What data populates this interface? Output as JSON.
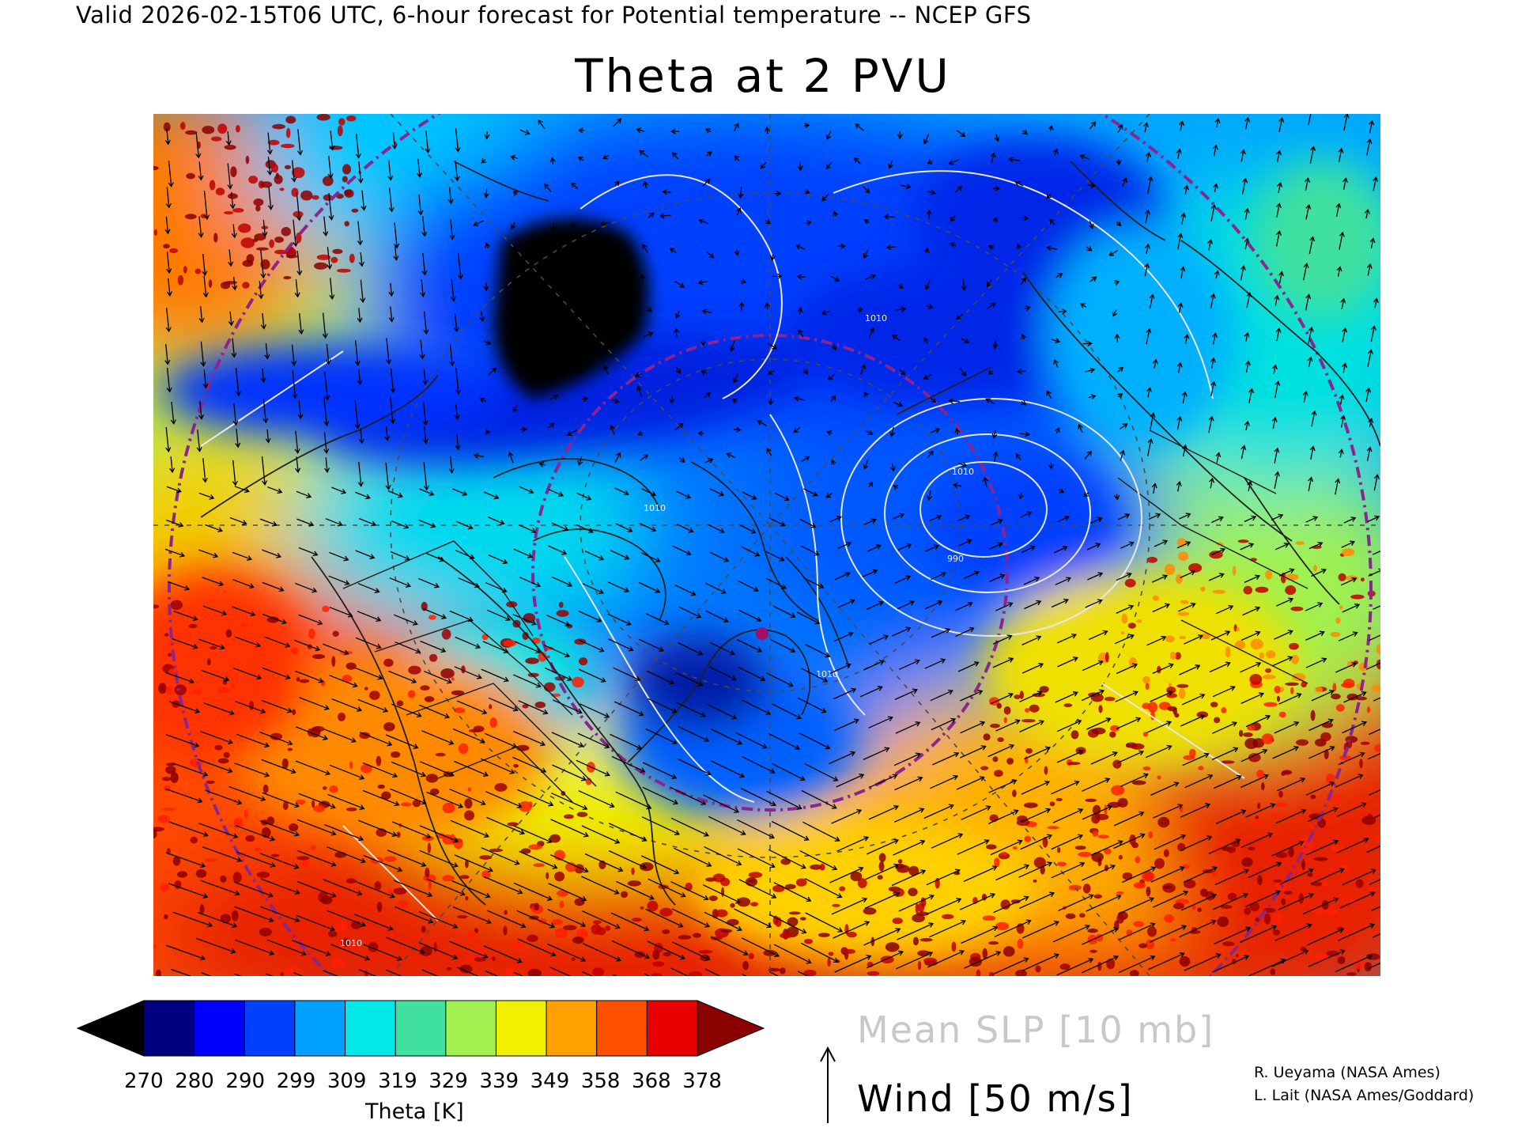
{
  "header": {
    "valid_line": "Valid 2026-02-15T06 UTC, 6-hour forecast for Potential temperature -- NCEP GFS",
    "title": "Theta at 2 PVU"
  },
  "colorbar": {
    "title": "Theta [K]",
    "ticks": [
      "270",
      "280",
      "290",
      "299",
      "309",
      "319",
      "329",
      "339",
      "349",
      "358",
      "368",
      "378"
    ],
    "low_extend_color": "#000000",
    "high_extend_color": "#8b0000",
    "colors": [
      "#000080",
      "#0000ff",
      "#0040ff",
      "#00a0ff",
      "#00e8e8",
      "#40e0a0",
      "#a0f050",
      "#f0f000",
      "#ffa000",
      "#ff5000",
      "#e80000"
    ]
  },
  "legend": {
    "slp_label": "Mean SLP [10 mb]",
    "wind_label": "Wind [50 m/s]"
  },
  "credits": {
    "line1": "R. Ueyama (NASA Ames)",
    "line2": "L. Lait (NASA Ames/Goddard)"
  },
  "map": {
    "fields": [
      "theta-2pvu-shading",
      "mean-slp-contours",
      "wind-vectors",
      "coastlines",
      "lat-lon-grid"
    ],
    "slp_contour_labels": [
      "1010",
      "990",
      "1010",
      "1010",
      "1010",
      "1010"
    ],
    "marker_color": "#a0106a",
    "ring_color": "#8a2590"
  }
}
